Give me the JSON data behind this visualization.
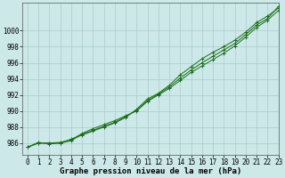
{
  "bg_color": "#cce8e8",
  "grid_color": "#aacccc",
  "line_color": "#1a6e1a",
  "x_hours": [
    0,
    1,
    2,
    3,
    4,
    5,
    6,
    7,
    8,
    9,
    10,
    11,
    12,
    13,
    14,
    15,
    16,
    17,
    18,
    19,
    20,
    21,
    22,
    23
  ],
  "line1": [
    985.5,
    986.0,
    986.0,
    986.1,
    986.4,
    987.2,
    987.8,
    988.3,
    988.8,
    989.4,
    990.0,
    991.2,
    992.0,
    992.8,
    993.8,
    994.8,
    995.6,
    996.4,
    997.2,
    998.1,
    999.2,
    1000.4,
    1001.3,
    1002.5
  ],
  "line2": [
    985.5,
    986.1,
    985.9,
    986.0,
    986.5,
    987.0,
    987.5,
    988.0,
    988.5,
    989.2,
    990.2,
    991.5,
    992.2,
    993.2,
    994.5,
    995.5,
    996.5,
    997.3,
    998.0,
    998.8,
    999.8,
    1001.0,
    1001.8,
    1002.8
  ],
  "line3": [
    985.5,
    986.0,
    986.0,
    986.0,
    986.3,
    987.1,
    987.6,
    988.1,
    988.6,
    989.3,
    990.1,
    991.3,
    992.1,
    993.0,
    994.1,
    995.1,
    996.0,
    996.8,
    997.6,
    998.4,
    999.5,
    1000.7,
    1001.5,
    1003.0
  ],
  "ylim": [
    984.5,
    1003.5
  ],
  "xlim": [
    -0.5,
    23
  ],
  "yticks": [
    986,
    988,
    990,
    992,
    994,
    996,
    998,
    1000
  ],
  "xticks": [
    0,
    1,
    2,
    3,
    4,
    5,
    6,
    7,
    8,
    9,
    10,
    11,
    12,
    13,
    14,
    15,
    16,
    17,
    18,
    19,
    20,
    21,
    22,
    23
  ],
  "xlabel": "Graphe pression niveau de la mer (hPa)",
  "xlabel_fontsize": 6.5,
  "axis_fontsize": 5.5
}
